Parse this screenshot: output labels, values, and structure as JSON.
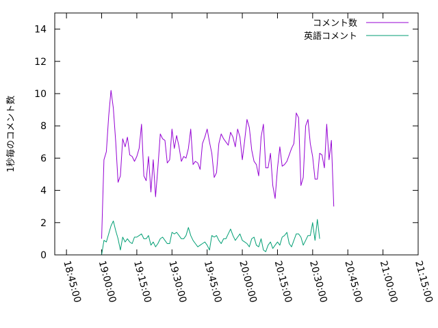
{
  "chart_data": {
    "type": "line",
    "title": "",
    "xlabel": "",
    "ylabel": "1秒毎のコメント数",
    "xlim": [
      "18:40:00",
      "21:15:00"
    ],
    "ylim": [
      0,
      15
    ],
    "x_ticks": [
      "18:45:00",
      "19:00:00",
      "19:15:00",
      "19:30:00",
      "19:45:00",
      "20:00:00",
      "20:15:00",
      "20:30:00",
      "20:45:00",
      "21:00:00",
      "21:15:00"
    ],
    "y_ticks": [
      0,
      2,
      4,
      6,
      8,
      10,
      12,
      14
    ],
    "legend_position": "top-right",
    "grid": false,
    "series": [
      {
        "name": "コメント数",
        "color": "#9400d3",
        "points": [
          [
            "19:00:00",
            1.0
          ],
          [
            "19:00:30",
            3.5
          ],
          [
            "19:01:00",
            5.9
          ],
          [
            "19:02:00",
            6.4
          ],
          [
            "19:03:00",
            8.6
          ],
          [
            "19:04:00",
            10.2
          ],
          [
            "19:05:00",
            9.1
          ],
          [
            "19:06:00",
            7.0
          ],
          [
            "19:07:00",
            4.5
          ],
          [
            "19:08:00",
            4.9
          ],
          [
            "19:09:00",
            7.2
          ],
          [
            "19:10:00",
            6.7
          ],
          [
            "19:11:00",
            7.3
          ],
          [
            "19:12:00",
            6.2
          ],
          [
            "19:13:00",
            6.1
          ],
          [
            "19:14:00",
            5.8
          ],
          [
            "19:15:00",
            6.1
          ],
          [
            "19:16:00",
            6.6
          ],
          [
            "19:17:00",
            8.1
          ],
          [
            "19:18:00",
            4.9
          ],
          [
            "19:19:00",
            4.6
          ],
          [
            "19:20:00",
            6.1
          ],
          [
            "19:21:00",
            3.9
          ],
          [
            "19:22:00",
            5.9
          ],
          [
            "19:23:00",
            3.6
          ],
          [
            "19:24:00",
            5.4
          ],
          [
            "19:25:00",
            7.5
          ],
          [
            "19:26:00",
            7.2
          ],
          [
            "19:27:00",
            7.1
          ],
          [
            "19:28:00",
            5.7
          ],
          [
            "19:29:00",
            5.9
          ],
          [
            "19:30:00",
            7.8
          ],
          [
            "19:31:00",
            6.6
          ],
          [
            "19:32:00",
            7.4
          ],
          [
            "19:33:00",
            6.7
          ],
          [
            "19:34:00",
            5.8
          ],
          [
            "19:35:00",
            6.1
          ],
          [
            "19:36:00",
            6.0
          ],
          [
            "19:37:00",
            6.6
          ],
          [
            "19:38:00",
            7.8
          ],
          [
            "19:39:00",
            5.6
          ],
          [
            "19:40:00",
            5.8
          ],
          [
            "19:41:00",
            5.7
          ],
          [
            "19:42:00",
            5.3
          ],
          [
            "19:43:00",
            6.9
          ],
          [
            "19:44:00",
            7.3
          ],
          [
            "19:45:00",
            7.8
          ],
          [
            "19:46:00",
            7.0
          ],
          [
            "19:47:00",
            6.3
          ],
          [
            "19:48:00",
            4.8
          ],
          [
            "19:49:00",
            5.1
          ],
          [
            "19:50:00",
            6.9
          ],
          [
            "19:51:00",
            7.5
          ],
          [
            "19:52:00",
            7.2
          ],
          [
            "19:53:00",
            7.0
          ],
          [
            "19:54:00",
            6.8
          ],
          [
            "19:55:00",
            7.6
          ],
          [
            "19:56:00",
            7.3
          ],
          [
            "19:57:00",
            6.7
          ],
          [
            "19:58:00",
            7.8
          ],
          [
            "19:59:00",
            7.3
          ],
          [
            "20:00:00",
            5.9
          ],
          [
            "20:01:00",
            7.1
          ],
          [
            "20:02:00",
            8.4
          ],
          [
            "20:03:00",
            7.9
          ],
          [
            "20:04:00",
            6.5
          ],
          [
            "20:05:00",
            5.8
          ],
          [
            "20:06:00",
            5.6
          ],
          [
            "20:07:00",
            4.9
          ],
          [
            "20:08:00",
            7.3
          ],
          [
            "20:09:00",
            8.1
          ],
          [
            "20:10:00",
            5.4
          ],
          [
            "20:11:00",
            5.4
          ],
          [
            "20:12:00",
            6.3
          ],
          [
            "20:13:00",
            4.3
          ],
          [
            "20:14:00",
            3.5
          ],
          [
            "20:15:00",
            5.4
          ],
          [
            "20:16:00",
            6.7
          ],
          [
            "20:17:00",
            5.5
          ],
          [
            "20:18:00",
            5.6
          ],
          [
            "20:19:00",
            5.8
          ],
          [
            "20:20:00",
            6.2
          ],
          [
            "20:21:00",
            6.6
          ],
          [
            "20:22:00",
            6.9
          ],
          [
            "20:23:00",
            8.8
          ],
          [
            "20:24:00",
            8.5
          ],
          [
            "20:25:00",
            4.3
          ],
          [
            "20:26:00",
            4.8
          ],
          [
            "20:27:00",
            8.0
          ],
          [
            "20:28:00",
            8.4
          ],
          [
            "20:29:00",
            6.9
          ],
          [
            "20:30:00",
            6.1
          ],
          [
            "20:31:00",
            4.7
          ],
          [
            "20:32:00",
            4.7
          ],
          [
            "20:33:00",
            6.3
          ],
          [
            "20:34:00",
            6.2
          ],
          [
            "20:35:00",
            5.4
          ],
          [
            "20:36:00",
            8.1
          ],
          [
            "20:37:00",
            5.9
          ],
          [
            "20:38:00",
            7.1
          ],
          [
            "20:39:00",
            3.0
          ]
        ]
      },
      {
        "name": "英語コメント",
        "color": "#009e73",
        "points": [
          [
            "19:00:00",
            0.0
          ],
          [
            "19:01:00",
            0.9
          ],
          [
            "19:02:00",
            0.8
          ],
          [
            "19:03:00",
            1.3
          ],
          [
            "19:04:00",
            1.8
          ],
          [
            "19:05:00",
            2.1
          ],
          [
            "19:06:00",
            1.5
          ],
          [
            "19:07:00",
            1.0
          ],
          [
            "19:08:00",
            0.3
          ],
          [
            "19:09:00",
            1.1
          ],
          [
            "19:10:00",
            0.8
          ],
          [
            "19:11:00",
            1.0
          ],
          [
            "19:12:00",
            0.8
          ],
          [
            "19:13:00",
            0.7
          ],
          [
            "19:14:00",
            1.1
          ],
          [
            "19:15:00",
            1.1
          ],
          [
            "19:16:00",
            1.2
          ],
          [
            "19:17:00",
            1.3
          ],
          [
            "19:18:00",
            1.0
          ],
          [
            "19:19:00",
            1.0
          ],
          [
            "19:20:00",
            1.2
          ],
          [
            "19:21:00",
            0.6
          ],
          [
            "19:22:00",
            0.8
          ],
          [
            "19:23:00",
            0.5
          ],
          [
            "19:24:00",
            0.7
          ],
          [
            "19:25:00",
            1.0
          ],
          [
            "19:26:00",
            1.1
          ],
          [
            "19:27:00",
            0.9
          ],
          [
            "19:28:00",
            0.7
          ],
          [
            "19:29:00",
            0.7
          ],
          [
            "19:30:00",
            1.4
          ],
          [
            "19:31:00",
            1.3
          ],
          [
            "19:32:00",
            1.4
          ],
          [
            "19:33:00",
            1.2
          ],
          [
            "19:34:00",
            1.0
          ],
          [
            "19:35:00",
            1.0
          ],
          [
            "19:36:00",
            1.2
          ],
          [
            "19:37:00",
            1.7
          ],
          [
            "19:38:00",
            1.2
          ],
          [
            "19:39:00",
            0.9
          ],
          [
            "19:40:00",
            0.7
          ],
          [
            "19:41:00",
            0.5
          ],
          [
            "19:42:00",
            0.6
          ],
          [
            "19:43:00",
            0.7
          ],
          [
            "19:44:00",
            0.8
          ],
          [
            "19:45:00",
            0.6
          ],
          [
            "19:46:00",
            0.3
          ],
          [
            "19:47:00",
            1.2
          ],
          [
            "19:48:00",
            1.1
          ],
          [
            "19:49:00",
            1.2
          ],
          [
            "19:50:00",
            0.9
          ],
          [
            "19:51:00",
            0.7
          ],
          [
            "19:52:00",
            1.0
          ],
          [
            "19:53:00",
            1.0
          ],
          [
            "19:54:00",
            1.3
          ],
          [
            "19:55:00",
            1.6
          ],
          [
            "19:56:00",
            1.2
          ],
          [
            "19:57:00",
            0.9
          ],
          [
            "19:58:00",
            1.1
          ],
          [
            "19:59:00",
            1.3
          ],
          [
            "20:00:00",
            0.9
          ],
          [
            "20:01:00",
            0.8
          ],
          [
            "20:02:00",
            0.7
          ],
          [
            "20:03:00",
            0.5
          ],
          [
            "20:04:00",
            1.0
          ],
          [
            "20:05:00",
            1.1
          ],
          [
            "20:06:00",
            0.6
          ],
          [
            "20:07:00",
            0.5
          ],
          [
            "20:08:00",
            1.0
          ],
          [
            "20:09:00",
            0.3
          ],
          [
            "20:10:00",
            0.2
          ],
          [
            "20:11:00",
            0.6
          ],
          [
            "20:12:00",
            0.8
          ],
          [
            "20:13:00",
            0.4
          ],
          [
            "20:14:00",
            0.6
          ],
          [
            "20:15:00",
            0.8
          ],
          [
            "20:16:00",
            0.6
          ],
          [
            "20:17:00",
            1.1
          ],
          [
            "20:18:00",
            1.2
          ],
          [
            "20:19:00",
            1.4
          ],
          [
            "20:20:00",
            0.7
          ],
          [
            "20:21:00",
            0.5
          ],
          [
            "20:22:00",
            0.9
          ],
          [
            "20:23:00",
            1.3
          ],
          [
            "20:24:00",
            1.3
          ],
          [
            "20:25:00",
            1.1
          ],
          [
            "20:26:00",
            0.6
          ],
          [
            "20:27:00",
            0.9
          ],
          [
            "20:28:00",
            1.2
          ],
          [
            "20:29:00",
            1.2
          ],
          [
            "20:30:00",
            2.0
          ],
          [
            "20:31:00",
            0.9
          ],
          [
            "20:32:00",
            2.2
          ],
          [
            "20:33:00",
            1.0
          ]
        ]
      }
    ]
  }
}
